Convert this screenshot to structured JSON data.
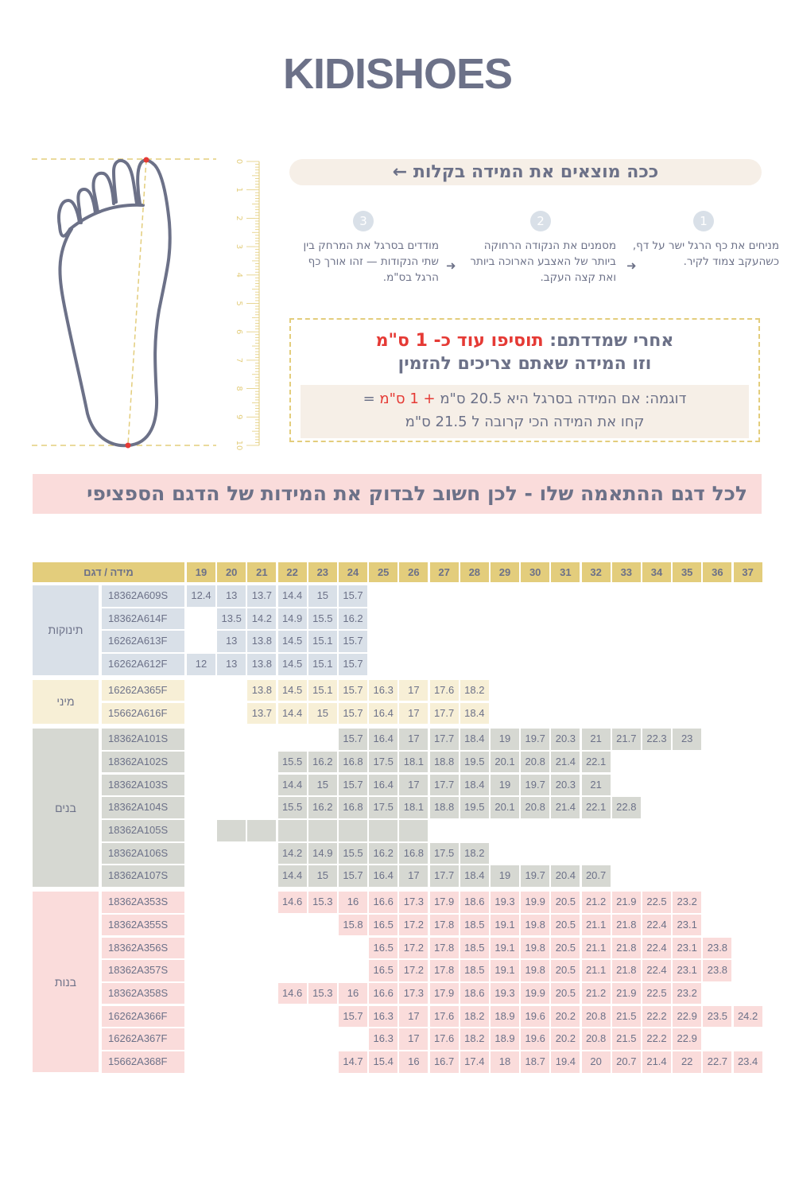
{
  "brand": "KIDISHOES",
  "howto": {
    "title": "ככה מוצאים את המידה בקלות ←",
    "steps": [
      {
        "num": "1",
        "text": "מניחים את כף הרגל ישר על דף, כשהעקב צמוד לקיר."
      },
      {
        "num": "2",
        "text": "מסמנים את הנקודה הרחוקה ביותר של האצבע הארוכה ביותר ואת קצה העקב."
      },
      {
        "num": "3",
        "text": "מודדים בסרגל את המרחק בין שתי הנקודות — זהו אורך כף הרגל בס\"מ."
      }
    ],
    "arrow": "➜"
  },
  "tip": {
    "line1_prefix": "אחרי שמדדתם: ",
    "line1_highlight": "תוסיפו עוד כ- 1 ס\"מ",
    "line2": "וזו המידה שאתם צריכים להזמין",
    "example_prefix": "דוגמה: אם המידה בסרגל היא 20.5 ס\"מ ",
    "example_highlight": "+ 1 ס\"מ",
    "example_suffix": " =",
    "example_line2": "קחו את המידה הכי קרובה ל 21.5 ס\"מ"
  },
  "ruler": {
    "labels": [
      "0",
      "1",
      "2",
      "3",
      "4",
      "5",
      "6",
      "7",
      "8",
      "9",
      "10"
    ],
    "color": "#e3cd7c"
  },
  "banner": "לכל דגם ההתאמה שלו - לכן חשוב לבדוק את המידות של הדגם הספציפי",
  "colors": {
    "header": "#e3cd7c",
    "text": "#6c7188",
    "accent_red": "#e53a35",
    "foot_outline": "#6c7188"
  },
  "table": {
    "header_label": "מידה / דגם",
    "sizes": [
      19,
      20,
      21,
      22,
      23,
      24,
      25,
      26,
      27,
      28,
      29,
      30,
      31,
      32,
      33,
      34,
      35,
      36,
      37
    ],
    "groups": [
      {
        "label": "תינוקות",
        "color": "#d9e0e8",
        "rows": [
          {
            "model": "18362A609S",
            "from": 19,
            "values": [
              "12.4",
              "13",
              "13.7",
              "14.4",
              "15",
              "15.7"
            ]
          },
          {
            "model": "18362A614F",
            "from": 20,
            "values": [
              "13.5",
              "14.2",
              "14.9",
              "15.5",
              "16.2"
            ]
          },
          {
            "model": "16262A613F",
            "from": 20,
            "values": [
              "13",
              "13.8",
              "14.5",
              "15.1",
              "15.7"
            ]
          },
          {
            "model": "16262A612F",
            "from": 19,
            "values": [
              "12",
              "13",
              "13.8",
              "14.5",
              "15.1",
              "15.7"
            ]
          }
        ]
      },
      {
        "label": "מיני",
        "color": "#f7efd6",
        "rows": [
          {
            "model": "16262A365F",
            "from": 21,
            "values": [
              "13.8",
              "14.5",
              "15.1",
              "15.7",
              "16.3",
              "17",
              "17.6",
              "18.2"
            ]
          },
          {
            "model": "15662A616F",
            "from": 21,
            "values": [
              "13.7",
              "14.4",
              "15",
              "15.7",
              "16.4",
              "17",
              "17.7",
              "18.4"
            ]
          }
        ]
      },
      {
        "label": "בנים",
        "color": "#d6d8d2",
        "rows": [
          {
            "model": "18362A101S",
            "from": 24,
            "values": [
              "15.7",
              "16.4",
              "17",
              "17.7",
              "18.4",
              "19",
              "19.7",
              "20.3",
              "21",
              "21.7",
              "22.3",
              "23"
            ]
          },
          {
            "model": "18362A102S",
            "from": 22,
            "values": [
              "15.5",
              "16.2",
              "16.8",
              "17.5",
              "18.1",
              "18.8",
              "19.5",
              "20.1",
              "20.8",
              "21.4",
              "22.1"
            ]
          },
          {
            "model": "18362A103S",
            "from": 22,
            "values": [
              "14.4",
              "15",
              "15.7",
              "16.4",
              "17",
              "17.7",
              "18.4",
              "19",
              "19.7",
              "20.3",
              "21"
            ]
          },
          {
            "model": "18362A104S",
            "from": 22,
            "values": [
              "15.5",
              "16.2",
              "16.8",
              "17.5",
              "18.1",
              "18.8",
              "19.5",
              "20.1",
              "20.8",
              "21.4",
              "22.1",
              "22.8"
            ]
          },
          {
            "model": "18362A105S",
            "from": 20,
            "values": [
              "",
              "",
              "",
              "",
              "",
              "",
              ""
            ]
          },
          {
            "model": "18362A106S",
            "from": 22,
            "values": [
              "14.2",
              "14.9",
              "15.5",
              "16.2",
              "16.8",
              "17.5",
              "18.2"
            ]
          },
          {
            "model": "18362A107S",
            "from": 22,
            "values": [
              "14.4",
              "15",
              "15.7",
              "16.4",
              "17",
              "17.7",
              "18.4",
              "19",
              "19.7",
              "20.4",
              "20.7"
            ]
          }
        ]
      },
      {
        "label": "בנות",
        "color": "#fadcdb",
        "rows": [
          {
            "model": "18362A353S",
            "from": 22,
            "values": [
              "14.6",
              "15.3",
              "16",
              "16.6",
              "17.3",
              "17.9",
              "18.6",
              "19.3",
              "19.9",
              "20.5",
              "21.2",
              "21.9",
              "22.5",
              "23.2"
            ]
          },
          {
            "model": "18362A355S",
            "from": 24,
            "values": [
              "15.8",
              "16.5",
              "17.2",
              "17.8",
              "18.5",
              "19.1",
              "19.8",
              "20.5",
              "21.1",
              "21.8",
              "22.4",
              "23.1"
            ]
          },
          {
            "model": "18362A356S",
            "from": 25,
            "values": [
              "16.5",
              "17.2",
              "17.8",
              "18.5",
              "19.1",
              "19.8",
              "20.5",
              "21.1",
              "21.8",
              "22.4",
              "23.1",
              "23.8"
            ]
          },
          {
            "model": "18362A357S",
            "from": 25,
            "values": [
              "16.5",
              "17.2",
              "17.8",
              "18.5",
              "19.1",
              "19.8",
              "20.5",
              "21.1",
              "21.8",
              "22.4",
              "23.1",
              "23.8"
            ]
          },
          {
            "model": "18362A358S",
            "from": 22,
            "values": [
              "14.6",
              "15.3",
              "16",
              "16.6",
              "17.3",
              "17.9",
              "18.6",
              "19.3",
              "19.9",
              "20.5",
              "21.2",
              "21.9",
              "22.5",
              "23.2"
            ]
          },
          {
            "model": "16262A366F",
            "from": 24,
            "values": [
              "15.7",
              "16.3",
              "17",
              "17.6",
              "18.2",
              "18.9",
              "19.6",
              "20.2",
              "20.8",
              "21.5",
              "22.2",
              "22.9",
              "23.5",
              "24.2"
            ]
          },
          {
            "model": "16262A367F",
            "from": 25,
            "values": [
              "16.3",
              "17",
              "17.6",
              "18.2",
              "18.9",
              "19.6",
              "20.2",
              "20.8",
              "21.5",
              "22.2",
              "22.9"
            ]
          },
          {
            "model": "15662A368F",
            "from": 24,
            "values": [
              "14.7",
              "15.4",
              "16",
              "16.7",
              "17.4",
              "18",
              "18.7",
              "19.4",
              "20",
              "20.7",
              "21.4",
              "22",
              "22.7",
              "23.4"
            ]
          }
        ]
      }
    ]
  }
}
